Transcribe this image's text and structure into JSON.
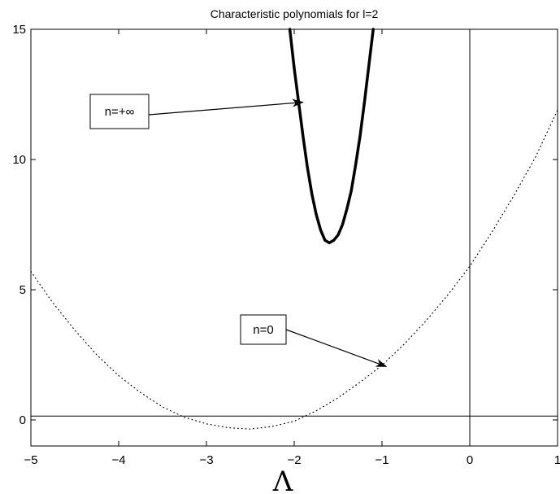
{
  "chart_data": {
    "type": "line",
    "title": "Characteristic polynomials for l=2",
    "xlabel": "Λ",
    "ylabel": "",
    "xlim": [
      -5,
      1
    ],
    "ylim": [
      -1,
      15
    ],
    "xticks": [
      -5,
      -4,
      -3,
      -2,
      -1,
      0,
      1
    ],
    "yticks": [
      0,
      5,
      10,
      15
    ],
    "xtick_labels": [
      "−5",
      "−4",
      "−3",
      "−2",
      "−1",
      "0",
      "1"
    ],
    "ytick_labels": [
      "0",
      "5",
      "10",
      "15"
    ],
    "grid": false,
    "reference_lines": [
      {
        "orientation": "horizontal",
        "value": 0.15
      },
      {
        "orientation": "vertical",
        "value": 0
      }
    ],
    "series": [
      {
        "style": "solid-thick",
        "x": [
          -2.05,
          -2.0,
          -1.95,
          -1.9,
          -1.85,
          -1.8,
          -1.75,
          -1.7,
          -1.65,
          -1.6,
          -1.55,
          -1.5,
          -1.45,
          -1.4,
          -1.35,
          -1.3,
          -1.25,
          -1.2,
          -1.15,
          -1.1
        ],
        "y": [
          15.0,
          13.5,
          12.2,
          10.9,
          9.7,
          8.7,
          7.9,
          7.3,
          6.9,
          6.8,
          6.9,
          7.1,
          7.5,
          8.1,
          8.8,
          9.8,
          10.9,
          12.2,
          13.6,
          15.0
        ]
      },
      {
        "style": "dotted",
        "x": [
          -5.0,
          -4.75,
          -4.5,
          -4.25,
          -4.0,
          -3.75,
          -3.5,
          -3.25,
          -3.0,
          -2.75,
          -2.5,
          -2.25,
          -2.0,
          -1.75,
          -1.5,
          -1.25,
          -1.0,
          -0.75,
          -0.5,
          -0.25,
          0.0,
          0.25,
          0.5,
          0.75,
          1.0
        ],
        "y": [
          5.7,
          4.5,
          3.45,
          2.5,
          1.7,
          1.05,
          0.5,
          0.1,
          -0.15,
          -0.3,
          -0.35,
          -0.25,
          -0.05,
          0.35,
          0.85,
          1.45,
          2.1,
          2.9,
          3.8,
          4.8,
          5.9,
          7.2,
          8.6,
          10.1,
          11.9
        ]
      }
    ],
    "annotations": [
      {
        "text": "n=+∞",
        "arrow_to": [
          -1.9,
          12.2
        ]
      },
      {
        "text": "n=0",
        "arrow_to": [
          -0.95,
          2.05
        ]
      }
    ]
  }
}
